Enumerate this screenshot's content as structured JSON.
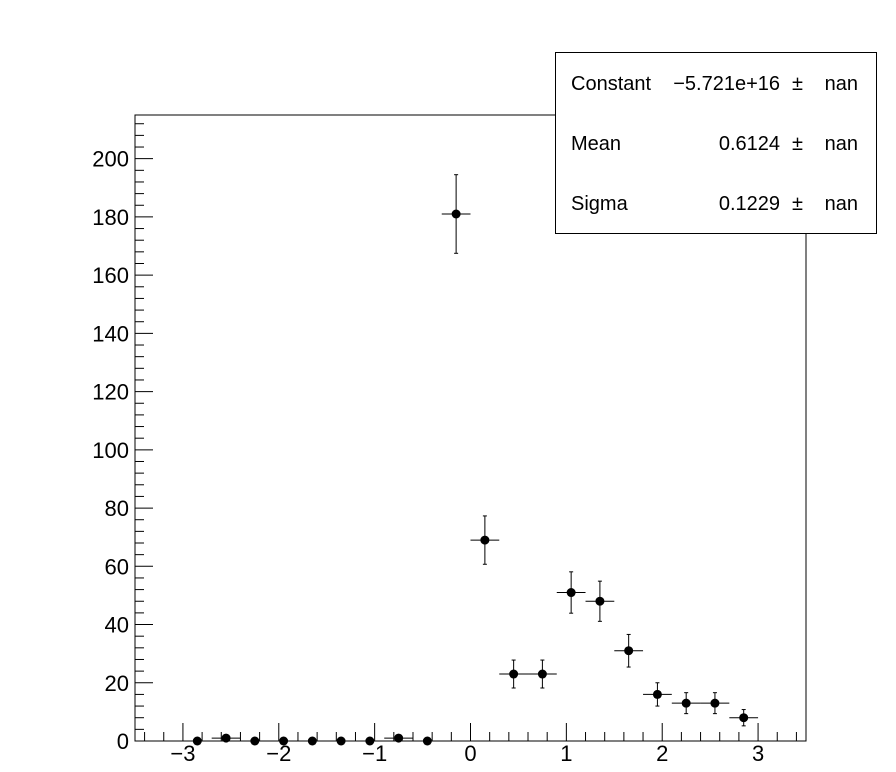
{
  "chart_data": {
    "type": "scatter",
    "title": "",
    "xlabel": "",
    "ylabel": "",
    "xlim": [
      -3.5,
      3.5
    ],
    "ylim": [
      0,
      215
    ],
    "x_tick_labels": [
      "−3",
      "−2",
      "−1",
      "0",
      "1",
      "2",
      "3"
    ],
    "y_tick_labels": [
      "0",
      "20",
      "40",
      "60",
      "80",
      "100",
      "120",
      "140",
      "160",
      "180",
      "200"
    ],
    "bin_width": 0.3,
    "series": [
      {
        "x": [
          -2.85,
          -2.55,
          -2.25,
          -1.95,
          -1.65,
          -1.35,
          -1.05,
          -0.75,
          -0.45,
          -0.15,
          0.15,
          0.45,
          0.75,
          1.05,
          1.35,
          1.65,
          1.95,
          2.25,
          2.55,
          2.85
        ],
        "y": [
          0,
          1,
          0,
          0,
          0,
          0,
          0,
          1,
          0,
          181,
          69,
          23,
          23,
          51,
          48,
          31,
          16,
          13,
          13,
          8
        ],
        "yerr": [
          0,
          1,
          0,
          0,
          0,
          0,
          0,
          1,
          0,
          13.5,
          8.3,
          4.8,
          4.8,
          7.1,
          6.9,
          5.6,
          4.0,
          3.6,
          3.6,
          2.8
        ]
      }
    ],
    "grid": false,
    "legend": "none"
  },
  "stats": [
    {
      "name": "Constant",
      "value": "−5.721e+16",
      "pm": "±",
      "error": "nan"
    },
    {
      "name": "Mean",
      "value": "0.6124",
      "pm": "±",
      "error": "nan"
    },
    {
      "name": "Sigma",
      "value": "0.1229",
      "pm": "±",
      "error": "nan"
    }
  ]
}
